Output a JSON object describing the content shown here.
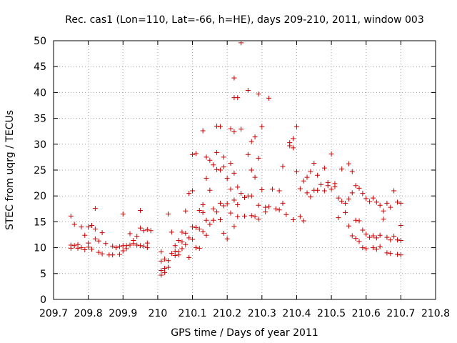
{
  "chart_data": {
    "type": "scatter",
    "title": "Rec. cas1 (Lon=110, Lat=-66, h=HE), days 209-210, 2011, window 003",
    "xlabel": "GPS time / Days of year 2011",
    "ylabel": "STEC from uqrg / TECUs",
    "xlim": [
      209.7,
      210.8
    ],
    "ylim": [
      0,
      50
    ],
    "xticks": [
      209.7,
      209.8,
      209.9,
      210.0,
      210.1,
      210.2,
      210.3,
      210.4,
      210.5,
      210.6,
      210.7,
      210.8
    ],
    "xtick_labels": [
      "209.7",
      "209.8",
      "209.9",
      "210",
      "210.1",
      "210.2",
      "210.3",
      "210.4",
      "210.5",
      "210.6",
      "210.7",
      "210.8"
    ],
    "yticks": [
      0,
      5,
      10,
      15,
      20,
      25,
      30,
      35,
      40,
      45,
      50
    ],
    "ytick_labels": [
      "0",
      "5",
      "10",
      "15",
      "20",
      "25",
      "30",
      "35",
      "40",
      "45",
      "50"
    ],
    "grid": true,
    "marker": "plus",
    "color": "#cc0000",
    "series": [
      {
        "name": "STEC",
        "points": [
          [
            209.75,
            16.1
          ],
          [
            209.75,
            10.5
          ],
          [
            209.75,
            9.9
          ],
          [
            209.76,
            14.5
          ],
          [
            209.76,
            10.4
          ],
          [
            209.77,
            9.9
          ],
          [
            209.77,
            10.6
          ],
          [
            209.78,
            14.0
          ],
          [
            209.78,
            10.0
          ],
          [
            209.79,
            12.4
          ],
          [
            209.79,
            9.6
          ],
          [
            209.8,
            14.0
          ],
          [
            209.8,
            10.9
          ],
          [
            209.8,
            10.1
          ],
          [
            209.81,
            14.3
          ],
          [
            209.81,
            9.7
          ],
          [
            209.82,
            17.6
          ],
          [
            209.82,
            13.6
          ],
          [
            209.82,
            11.7
          ],
          [
            209.83,
            11.3
          ],
          [
            209.83,
            9.1
          ],
          [
            209.84,
            12.9
          ],
          [
            209.84,
            8.8
          ],
          [
            209.85,
            10.8
          ],
          [
            209.86,
            8.6
          ],
          [
            209.87,
            10.3
          ],
          [
            209.87,
            8.6
          ],
          [
            209.88,
            10.0
          ],
          [
            209.89,
            8.7
          ],
          [
            209.89,
            10.2
          ],
          [
            209.9,
            10.4
          ],
          [
            209.9,
            9.4
          ],
          [
            209.9,
            16.5
          ],
          [
            209.91,
            10.4
          ],
          [
            209.91,
            9.8
          ],
          [
            209.92,
            12.7
          ],
          [
            209.92,
            10.5
          ],
          [
            209.93,
            11.4
          ],
          [
            209.93,
            10.8
          ],
          [
            209.94,
            12.2
          ],
          [
            209.94,
            10.5
          ],
          [
            209.95,
            13.8
          ],
          [
            209.95,
            10.4
          ],
          [
            209.95,
            17.2
          ],
          [
            209.96,
            13.3
          ],
          [
            209.96,
            10.3
          ],
          [
            209.97,
            10.9
          ],
          [
            209.97,
            13.5
          ],
          [
            209.97,
            10.0
          ],
          [
            209.98,
            13.3
          ],
          [
            210.01,
            9.2
          ],
          [
            210.01,
            7.4
          ],
          [
            210.01,
            5.6
          ],
          [
            210.01,
            4.7
          ],
          [
            210.02,
            6.0
          ],
          [
            210.02,
            5.2
          ],
          [
            210.02,
            7.8
          ],
          [
            210.03,
            16.5
          ],
          [
            210.03,
            7.5
          ],
          [
            210.03,
            6.2
          ],
          [
            210.04,
            13.0
          ],
          [
            210.04,
            8.9
          ],
          [
            210.05,
            9.3
          ],
          [
            210.05,
            8.5
          ],
          [
            210.05,
            10.4
          ],
          [
            210.06,
            11.4
          ],
          [
            210.06,
            9.2
          ],
          [
            210.06,
            8.6
          ],
          [
            210.07,
            13.0
          ],
          [
            210.07,
            11.1
          ],
          [
            210.07,
            9.8
          ],
          [
            210.08,
            17.1
          ],
          [
            210.08,
            12.8
          ],
          [
            210.08,
            10.6
          ],
          [
            210.09,
            20.5
          ],
          [
            210.09,
            11.9
          ],
          [
            210.09,
            8.1
          ],
          [
            210.1,
            28.0
          ],
          [
            210.1,
            21.0
          ],
          [
            210.1,
            14.0
          ],
          [
            210.1,
            11.6
          ],
          [
            210.11,
            28.2
          ],
          [
            210.11,
            13.9
          ],
          [
            210.11,
            10.0
          ],
          [
            210.12,
            17.2
          ],
          [
            210.12,
            13.6
          ],
          [
            210.12,
            9.9
          ],
          [
            210.13,
            32.6
          ],
          [
            210.13,
            18.3
          ],
          [
            210.13,
            16.8
          ],
          [
            210.13,
            13.1
          ],
          [
            210.14,
            27.5
          ],
          [
            210.14,
            23.4
          ],
          [
            210.14,
            15.3
          ],
          [
            210.14,
            12.4
          ],
          [
            210.15,
            26.9
          ],
          [
            210.15,
            21.1
          ],
          [
            210.15,
            14.5
          ],
          [
            210.16,
            26.0
          ],
          [
            210.16,
            17.5
          ],
          [
            210.16,
            15.3
          ],
          [
            210.17,
            33.5
          ],
          [
            210.17,
            28.4
          ],
          [
            210.17,
            25.1
          ],
          [
            210.17,
            16.9
          ],
          [
            210.18,
            33.4
          ],
          [
            210.18,
            25.0
          ],
          [
            210.18,
            18.6
          ],
          [
            210.18,
            15.4
          ],
          [
            210.19,
            27.5
          ],
          [
            210.19,
            25.6
          ],
          [
            210.19,
            18.1
          ],
          [
            210.19,
            12.8
          ],
          [
            210.2,
            23.4
          ],
          [
            210.2,
            18.5
          ],
          [
            210.2,
            11.7
          ],
          [
            210.21,
            33.0
          ],
          [
            210.21,
            26.3
          ],
          [
            210.21,
            21.3
          ],
          [
            210.21,
            16.7
          ],
          [
            210.22,
            32.4
          ],
          [
            210.22,
            24.4
          ],
          [
            210.22,
            19.2
          ],
          [
            210.22,
            14.1
          ],
          [
            210.22,
            42.8
          ],
          [
            210.22,
            39.0
          ],
          [
            210.23,
            39.0
          ],
          [
            210.23,
            21.7
          ],
          [
            210.23,
            18.3
          ],
          [
            210.23,
            16.0
          ],
          [
            210.24,
            49.6
          ],
          [
            210.24,
            32.9
          ],
          [
            210.24,
            20.5
          ],
          [
            210.25,
            19.7
          ],
          [
            210.25,
            16.1
          ],
          [
            210.26,
            40.4
          ],
          [
            210.26,
            28.0
          ],
          [
            210.26,
            20.0
          ],
          [
            210.27,
            30.5
          ],
          [
            210.27,
            25.0
          ],
          [
            210.27,
            20.0
          ],
          [
            210.27,
            16.2
          ],
          [
            210.28,
            31.4
          ],
          [
            210.28,
            23.6
          ],
          [
            210.28,
            16.0
          ],
          [
            210.29,
            27.3
          ],
          [
            210.29,
            18.2
          ],
          [
            210.29,
            15.5
          ],
          [
            210.29,
            39.7
          ],
          [
            210.3,
            33.4
          ],
          [
            210.3,
            21.2
          ],
          [
            210.31,
            17.8
          ],
          [
            210.31,
            16.9
          ],
          [
            210.32,
            38.9
          ],
          [
            210.32,
            17.9
          ],
          [
            210.33,
            21.3
          ],
          [
            210.34,
            17.5
          ],
          [
            210.35,
            21.0
          ],
          [
            210.35,
            17.3
          ],
          [
            210.36,
            25.7
          ],
          [
            210.36,
            18.6
          ],
          [
            210.37,
            16.4
          ],
          [
            210.38,
            30.3
          ],
          [
            210.38,
            29.7
          ],
          [
            210.39,
            31.1
          ],
          [
            210.39,
            29.3
          ],
          [
            210.39,
            15.4
          ],
          [
            210.4,
            33.4
          ],
          [
            210.4,
            24.7
          ],
          [
            210.41,
            16.0
          ],
          [
            210.41,
            21.4
          ],
          [
            210.42,
            22.9
          ],
          [
            210.42,
            15.2
          ],
          [
            210.43,
            20.6
          ],
          [
            210.43,
            23.6
          ],
          [
            210.44,
            24.7
          ],
          [
            210.44,
            19.8
          ],
          [
            210.45,
            26.3
          ],
          [
            210.45,
            21.1
          ],
          [
            210.46,
            24.0
          ],
          [
            210.46,
            21.1
          ],
          [
            210.47,
            22.2
          ],
          [
            210.48,
            21.0
          ],
          [
            210.48,
            25.4
          ],
          [
            210.49,
            22.0
          ],
          [
            210.49,
            22.6
          ],
          [
            210.5,
            28.1
          ],
          [
            210.5,
            21.3
          ],
          [
            210.51,
            21.8
          ],
          [
            210.51,
            22.4
          ],
          [
            210.52,
            19.6
          ],
          [
            210.52,
            15.8
          ],
          [
            210.53,
            19.0
          ],
          [
            210.53,
            25.2
          ],
          [
            210.54,
            18.6
          ],
          [
            210.54,
            16.8
          ],
          [
            210.55,
            26.2
          ],
          [
            210.55,
            19.4
          ],
          [
            210.55,
            14.2
          ],
          [
            210.56,
            24.7
          ],
          [
            210.56,
            20.6
          ],
          [
            210.56,
            12.3
          ],
          [
            210.57,
            22.0
          ],
          [
            210.57,
            15.3
          ],
          [
            210.57,
            11.8
          ],
          [
            210.58,
            21.5
          ],
          [
            210.58,
            15.2
          ],
          [
            210.58,
            11.2
          ],
          [
            210.59,
            20.5
          ],
          [
            210.59,
            13.4
          ],
          [
            210.59,
            10.0
          ],
          [
            210.6,
            19.5
          ],
          [
            210.6,
            12.6
          ],
          [
            210.6,
            9.8
          ],
          [
            210.61,
            18.9
          ],
          [
            210.61,
            12.0
          ],
          [
            210.62,
            19.6
          ],
          [
            210.62,
            12.3
          ],
          [
            210.62,
            10.0
          ],
          [
            210.63,
            18.8
          ],
          [
            210.63,
            11.9
          ],
          [
            210.63,
            9.7
          ],
          [
            210.64,
            18.2
          ],
          [
            210.64,
            12.4
          ],
          [
            210.64,
            10.2
          ],
          [
            210.65,
            17.1
          ],
          [
            210.65,
            15.5
          ],
          [
            210.66,
            18.6
          ],
          [
            210.66,
            12.0
          ],
          [
            210.66,
            9.0
          ],
          [
            210.67,
            17.8
          ],
          [
            210.67,
            11.5
          ],
          [
            210.67,
            8.9
          ],
          [
            210.68,
            21.0
          ],
          [
            210.68,
            12.2
          ],
          [
            210.69,
            18.8
          ],
          [
            210.69,
            11.5
          ],
          [
            210.69,
            8.7
          ],
          [
            210.7,
            18.6
          ],
          [
            210.7,
            14.3
          ],
          [
            210.7,
            11.4
          ],
          [
            210.7,
            8.6
          ]
        ]
      }
    ]
  }
}
